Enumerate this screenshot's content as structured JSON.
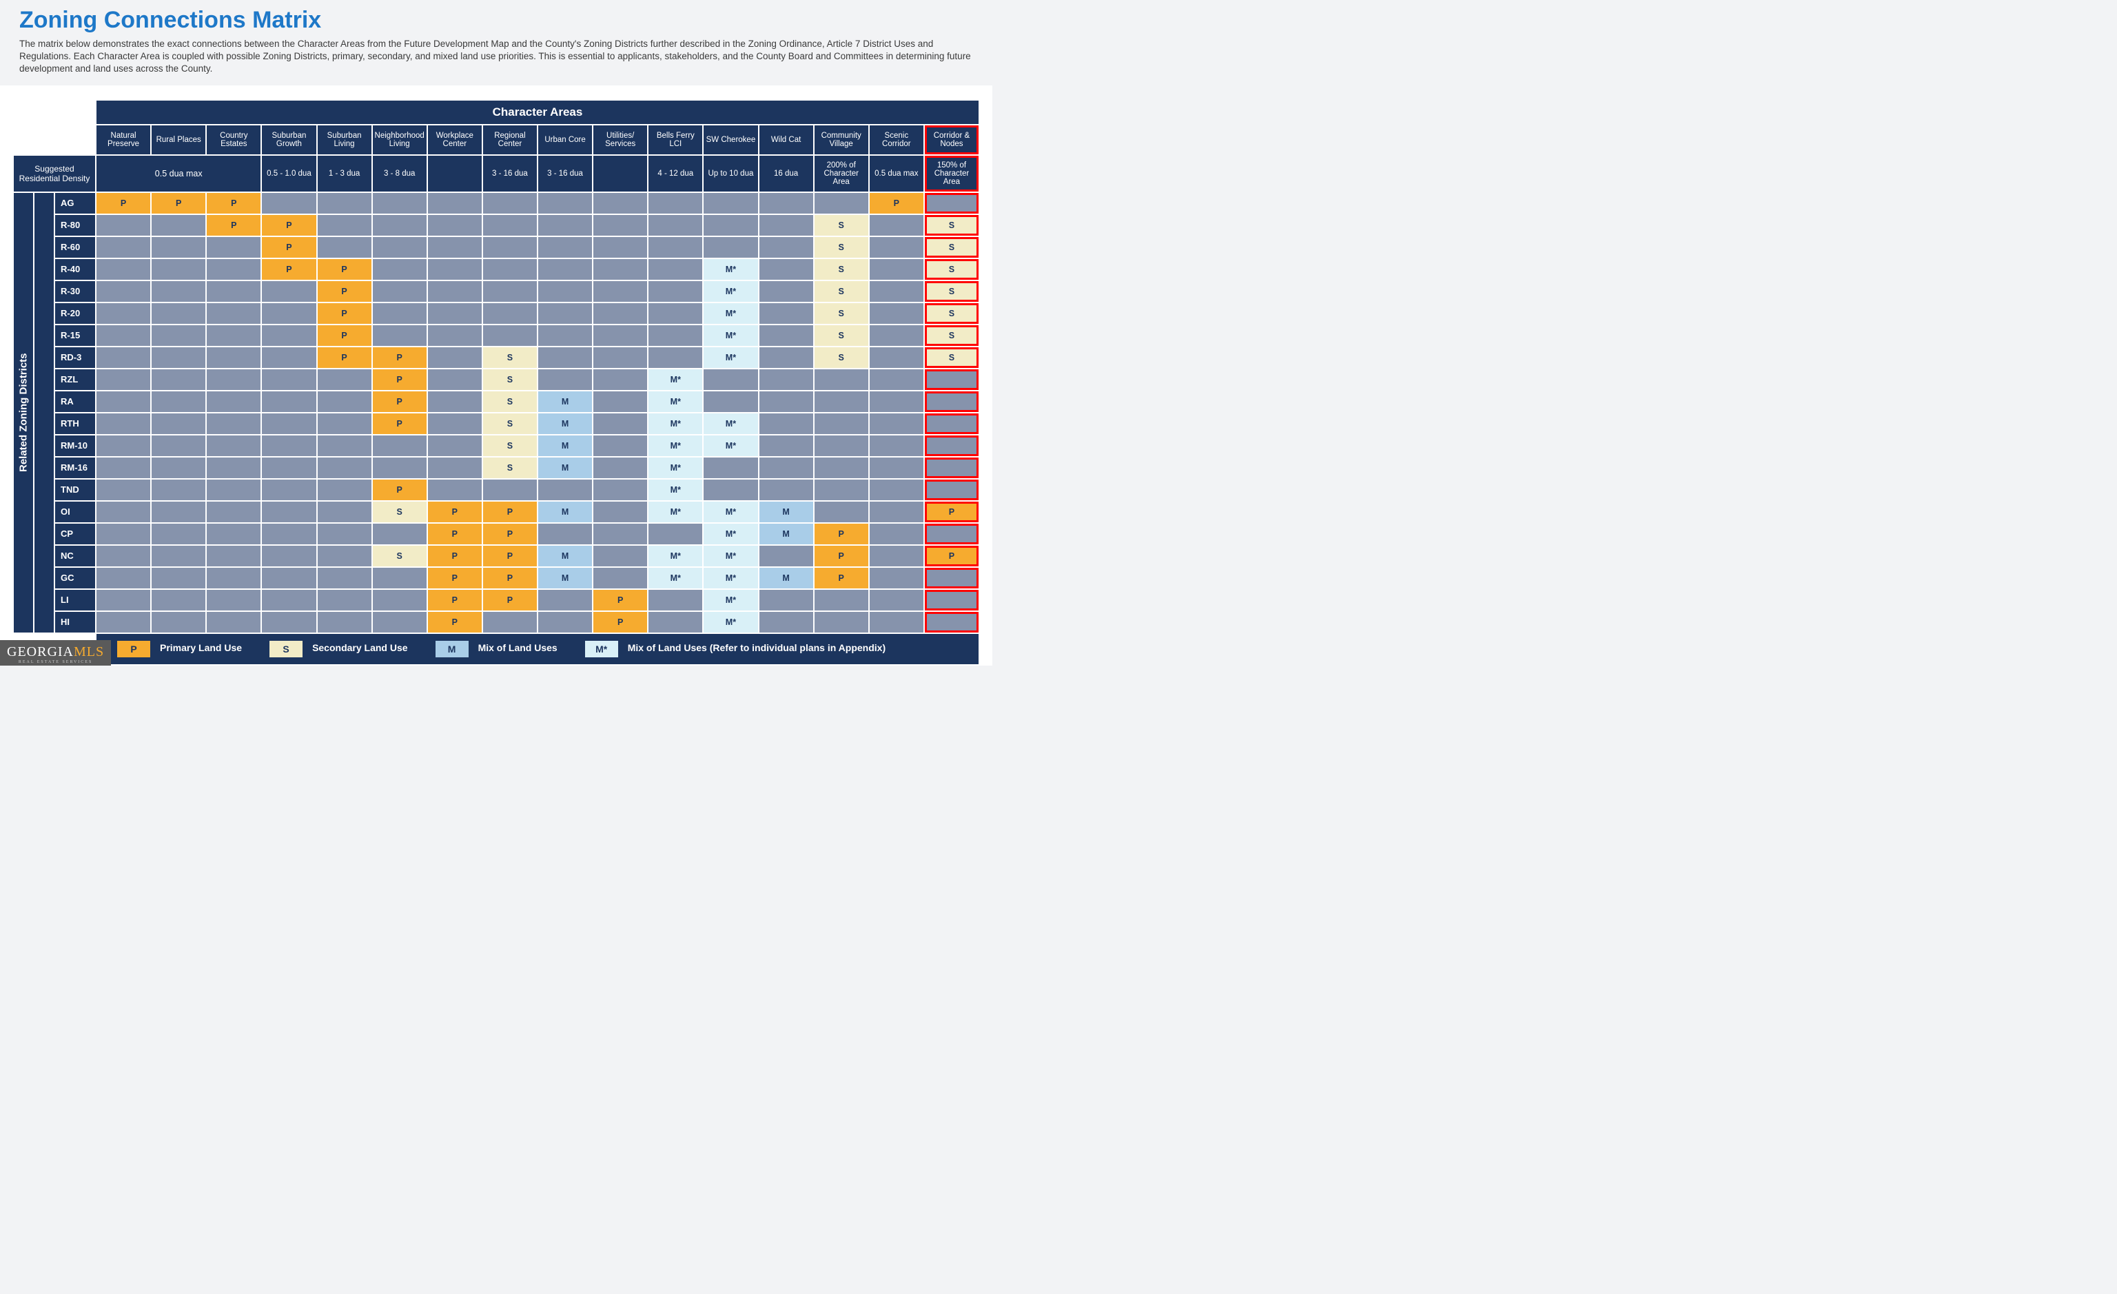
{
  "colors": {
    "title": "#1e78c8",
    "intro": "#3a3a3a",
    "hdr_bg": "#1c355e",
    "empty": "#8693ac",
    "P": "#f6ab2f",
    "S": "#f2ecc7",
    "M": "#a9cde8",
    "Ms": "#d9f0f7",
    "text_dark": "#1c355e",
    "highlight": "#ff0000"
  },
  "header": {
    "title": "Zoning Connections Matrix",
    "intro": "The matrix below demonstrates the exact connections between the Character Areas from the Future Development Map and the County's Zoning Districts further described in the Zoning Ordinance, Article 7 District Uses and Regulations. Each Character Area is coupled with possible Zoning Districts, primary, secondary, and mixed land use priorities. This is essential to applicants, stakeholders, and the County Board and Committees in determining future development and land uses across the County."
  },
  "matrix": {
    "super_header": "Character Areas",
    "side_label": "Related Zoning Districts",
    "density_label": "Suggested Residential Density",
    "columns": [
      {
        "name": "Natural Preserve",
        "density": ""
      },
      {
        "name": "Rural Places",
        "density": ""
      },
      {
        "name": "Country Estates",
        "density": ""
      },
      {
        "name": "Suburban Growth",
        "density": "0.5 - 1.0 dua"
      },
      {
        "name": "Suburban Living",
        "density": "1 - 3 dua"
      },
      {
        "name": "Neighborhood Living",
        "density": "3 - 8 dua"
      },
      {
        "name": "Workplace Center",
        "density": ""
      },
      {
        "name": "Regional Center",
        "density": "3 - 16 dua"
      },
      {
        "name": "Urban Core",
        "density": "3 - 16 dua"
      },
      {
        "name": "Utilities/ Services",
        "density": ""
      },
      {
        "name": "Bells Ferry LCI",
        "density": "4 - 12 dua"
      },
      {
        "name": "SW Cherokee",
        "density": "Up to 10 dua"
      },
      {
        "name": "Wild Cat",
        "density": "16 dua"
      },
      {
        "name": "Community Village",
        "density": "200% of Character Area"
      },
      {
        "name": "Scenic Corridor",
        "density": "0.5 dua max"
      },
      {
        "name": "Corridor & Nodes",
        "density": "150% of Character Area",
        "highlight": true
      }
    ],
    "density_span_first3": "0.5 dua max",
    "rows": [
      {
        "label": "AG",
        "cells": [
          "P",
          "P",
          "P",
          "",
          "",
          "",
          "",
          "",
          "",
          "",
          "",
          "",
          "",
          "",
          "P",
          ""
        ]
      },
      {
        "label": "R-80",
        "cells": [
          "",
          "",
          "P",
          "P",
          "",
          "",
          "",
          "",
          "",
          "",
          "",
          "",
          "",
          "S",
          "",
          "S"
        ]
      },
      {
        "label": "R-60",
        "cells": [
          "",
          "",
          "",
          "P",
          "",
          "",
          "",
          "",
          "",
          "",
          "",
          "",
          "",
          "S",
          "",
          "S"
        ]
      },
      {
        "label": "R-40",
        "cells": [
          "",
          "",
          "",
          "P",
          "P",
          "",
          "",
          "",
          "",
          "",
          "",
          "M*",
          "",
          "S",
          "",
          "S"
        ]
      },
      {
        "label": "R-30",
        "cells": [
          "",
          "",
          "",
          "",
          "P",
          "",
          "",
          "",
          "",
          "",
          "",
          "M*",
          "",
          "S",
          "",
          "S"
        ]
      },
      {
        "label": "R-20",
        "cells": [
          "",
          "",
          "",
          "",
          "P",
          "",
          "",
          "",
          "",
          "",
          "",
          "M*",
          "",
          "S",
          "",
          "S"
        ]
      },
      {
        "label": "R-15",
        "cells": [
          "",
          "",
          "",
          "",
          "P",
          "",
          "",
          "",
          "",
          "",
          "",
          "M*",
          "",
          "S",
          "",
          "S"
        ]
      },
      {
        "label": "RD-3",
        "cells": [
          "",
          "",
          "",
          "",
          "P",
          "P",
          "",
          "S",
          "",
          "",
          "",
          "M*",
          "",
          "S",
          "",
          "S"
        ]
      },
      {
        "label": "RZL",
        "cells": [
          "",
          "",
          "",
          "",
          "",
          "P",
          "",
          "S",
          "",
          "",
          "M*",
          "",
          "",
          "",
          "",
          ""
        ]
      },
      {
        "label": "RA",
        "cells": [
          "",
          "",
          "",
          "",
          "",
          "P",
          "",
          "S",
          "M",
          "",
          "M*",
          "",
          "",
          "",
          "",
          ""
        ]
      },
      {
        "label": "RTH",
        "cells": [
          "",
          "",
          "",
          "",
          "",
          "P",
          "",
          "S",
          "M",
          "",
          "M*",
          "M*",
          "",
          "",
          "",
          ""
        ]
      },
      {
        "label": "RM-10",
        "cells": [
          "",
          "",
          "",
          "",
          "",
          "",
          "",
          "S",
          "M",
          "",
          "M*",
          "M*",
          "",
          "",
          "",
          ""
        ]
      },
      {
        "label": "RM-16",
        "cells": [
          "",
          "",
          "",
          "",
          "",
          "",
          "",
          "S",
          "M",
          "",
          "M*",
          "",
          "",
          "",
          "",
          ""
        ]
      },
      {
        "label": "TND",
        "cells": [
          "",
          "",
          "",
          "",
          "",
          "P",
          "",
          "",
          "",
          "",
          "M*",
          "",
          "",
          "",
          "",
          ""
        ]
      },
      {
        "label": "OI",
        "cells": [
          "",
          "",
          "",
          "",
          "",
          "S",
          "P",
          "P",
          "M",
          "",
          "M*",
          "M*",
          "M",
          "",
          "",
          "P"
        ]
      },
      {
        "label": "CP",
        "cells": [
          "",
          "",
          "",
          "",
          "",
          "",
          "P",
          "P",
          "",
          "",
          "",
          "M*",
          "M",
          "P",
          "",
          ""
        ]
      },
      {
        "label": "NC",
        "cells": [
          "",
          "",
          "",
          "",
          "",
          "S",
          "P",
          "P",
          "M",
          "",
          "M*",
          "M*",
          "",
          "P",
          "",
          "P"
        ]
      },
      {
        "label": "GC",
        "cells": [
          "",
          "",
          "",
          "",
          "",
          "",
          "P",
          "P",
          "M",
          "",
          "M*",
          "M*",
          "M",
          "P",
          "",
          ""
        ]
      },
      {
        "label": "LI",
        "cells": [
          "",
          "",
          "",
          "",
          "",
          "",
          "P",
          "P",
          "",
          "P",
          "",
          "M*",
          "",
          "",
          "",
          ""
        ]
      },
      {
        "label": "HI",
        "cells": [
          "",
          "",
          "",
          "",
          "",
          "",
          "P",
          "",
          "",
          "P",
          "",
          "M*",
          "",
          "",
          "",
          ""
        ]
      }
    ]
  },
  "legend": [
    {
      "key": "P",
      "label": "Primary Land Use",
      "color": "#f6ab2f"
    },
    {
      "key": "S",
      "label": "Secondary Land Use",
      "color": "#f2ecc7"
    },
    {
      "key": "M",
      "label": "Mix of Land Uses",
      "color": "#a9cde8"
    },
    {
      "key": "M*",
      "label": "Mix of Land Uses (Refer to individual plans in Appendix)",
      "color": "#d9f0f7"
    }
  ],
  "logo": {
    "line1": "GEORGIA",
    "line2": "MLS",
    "sub": "REAL ESTATE SERVICES"
  }
}
